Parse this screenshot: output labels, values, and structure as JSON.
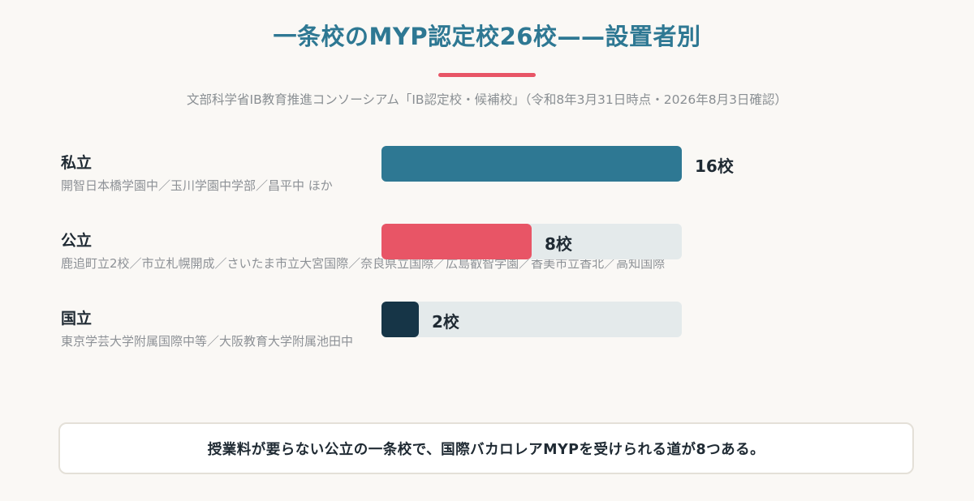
{
  "title": "一条校のMYP認定校26校——設置者別",
  "subtitle": "文部科学省IB教育推進コンソーシアム「IB認定校・候補校」（令和8年3月31日時点・2026年8月3日確認）",
  "chart_data": {
    "type": "bar",
    "orientation": "horizontal",
    "categories": [
      "私立",
      "公立",
      "国立"
    ],
    "values": [
      16,
      8,
      2
    ],
    "unit": "校",
    "xlim": [
      0,
      16
    ],
    "value_labels": [
      "16校",
      "8校",
      "2校"
    ],
    "descriptions": [
      "開智日本橋学園中／玉川学園中学部／昌平中 ほか",
      "鹿追町立2校／市立札幌開成／さいたま市立大宮国際／奈良県立国際／広島叡智学園／香美市立香北／高知国際",
      "東京学芸大学附属国際中等／大阪教育大学附属池田中"
    ],
    "colors": [
      "#2e7893",
      "#e85566",
      "#163547"
    ]
  },
  "callout": "授業料が要らない公立の一条校で、国際バカロレアMYPを受けられる道が8つある。"
}
